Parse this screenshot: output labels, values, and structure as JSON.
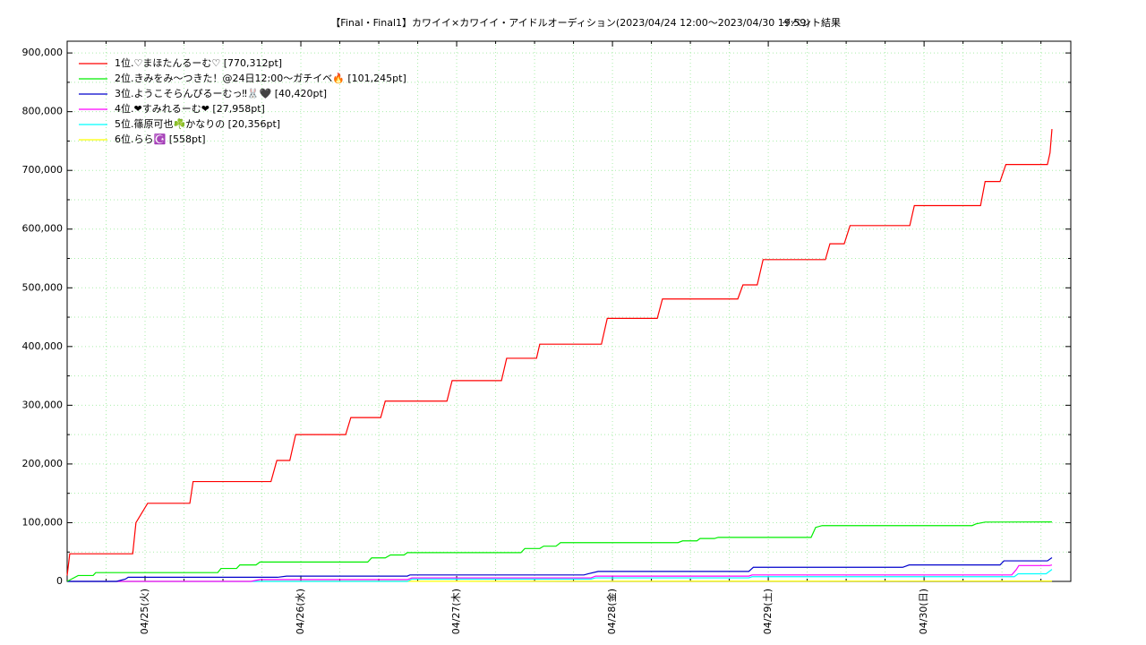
{
  "chart_data": {
    "type": "line",
    "title": "【Final・Final1】カワイイ×カワイイ・アイドルオーディション(2023/04/24 12:00〜2023/04/30 19:59)",
    "subtitle": "イベント結果",
    "xlim": [
      0,
      154.6
    ],
    "xticks": [
      {
        "value": 12,
        "label": "04/25(火)"
      },
      {
        "value": 36,
        "label": "04/26(水)"
      },
      {
        "value": 60,
        "label": "04/27(木)"
      },
      {
        "value": 84,
        "label": "04/28(金)"
      },
      {
        "value": 108,
        "label": "04/29(土)"
      },
      {
        "value": 132,
        "label": "04/30(日)"
      }
    ],
    "xminorticks": [
      0,
      6,
      18,
      24,
      30,
      42,
      48,
      54,
      66,
      72,
      78,
      90,
      96,
      102,
      114,
      120,
      126,
      138,
      144,
      150
    ],
    "ylim": [
      0,
      920000
    ],
    "yticks": [
      0,
      {
        "value": 100000,
        "label": "100,000"
      },
      {
        "value": 200000,
        "label": "200,000"
      },
      {
        "value": 300000,
        "label": "300,000"
      },
      {
        "value": 400000,
        "label": "400,000"
      },
      {
        "value": 500000,
        "label": "500,000"
      },
      {
        "value": 600000,
        "label": "600,000"
      },
      {
        "value": 700000,
        "label": "700,000"
      },
      {
        "value": 800000,
        "label": "800,000"
      },
      {
        "value": 900000,
        "label": "900,000"
      }
    ],
    "yminorticks": [
      50000,
      150000,
      250000,
      350000,
      450000,
      550000,
      650000,
      750000,
      850000
    ],
    "grid": true,
    "legend": "top-left",
    "series": [
      {
        "name": "1位.♡まほたんるーむ♡ [770,312pt]",
        "color": "#ff0000",
        "x": [
          0,
          0.4,
          10.1,
          10.6,
          12.4,
          18.9,
          19.4,
          31.4,
          32.3,
          34.3,
          35.2,
          42.9,
          43.7,
          48.3,
          49.0,
          58.5,
          59.3,
          66.9,
          67.7,
          72.3,
          72.8,
          82.3,
          83.2,
          90.9,
          91.7,
          103.3,
          104.1,
          106.3,
          107.2,
          116.8,
          117.5,
          119.7,
          120.6,
          129.8,
          130.5,
          140.7,
          141.4,
          143.7,
          144.6,
          151.0,
          151.4,
          151.7
        ],
        "values": [
          10000,
          47000,
          47000,
          100000,
          133000,
          133000,
          170000,
          170000,
          206000,
          206000,
          250000,
          250000,
          279000,
          279000,
          307000,
          307000,
          342000,
          342000,
          380000,
          380000,
          404000,
          404000,
          448000,
          448000,
          481000,
          481000,
          505000,
          505000,
          548000,
          548000,
          575000,
          575000,
          606000,
          606000,
          640000,
          640000,
          681000,
          681000,
          710000,
          710000,
          730000,
          770312
        ]
      },
      {
        "name": "2位.きみをみ〜つきた！@24日12:00〜ガチイベ🔥 [101,245pt]",
        "color": "#00ee00",
        "x": [
          0,
          1.7,
          4.0,
          4.4,
          23.2,
          23.7,
          26.1,
          26.6,
          29.1,
          29.7,
          46.3,
          46.9,
          49.0,
          49.8,
          51.9,
          52.4,
          69.9,
          70.5,
          72.8,
          73.4,
          75.3,
          76.0,
          94.1,
          94.8,
          97.0,
          97.5,
          99.7,
          100.3,
          114.6,
          115.3,
          116.3,
          139.4,
          140.0,
          141.4,
          151.7
        ],
        "values": [
          0,
          10000,
          10000,
          15000,
          15000,
          22000,
          22000,
          28000,
          28000,
          33000,
          33000,
          40000,
          40000,
          45000,
          45000,
          49000,
          49000,
          56000,
          56000,
          60000,
          60000,
          66000,
          66000,
          69000,
          69000,
          73000,
          73000,
          75000,
          75000,
          92000,
          95000,
          95000,
          98000,
          101000,
          101245
        ]
      },
      {
        "name": "3位.ようこそらんぴるーむっ‼︎🐰🖤 [40,420pt]",
        "color": "#0000cc",
        "x": [
          0,
          7.6,
          9.0,
          9.4,
          32.4,
          33.8,
          52.4,
          52.8,
          79.6,
          80.3,
          81.8,
          105.0,
          105.7,
          128.7,
          129.7,
          143.7,
          144.3,
          151.0,
          151.7
        ],
        "values": [
          0,
          0,
          4000,
          7000,
          7000,
          9000,
          9000,
          11000,
          11000,
          13000,
          17000,
          17000,
          24000,
          24000,
          28000,
          28000,
          35000,
          35000,
          40420
        ]
      },
      {
        "name": "4位.❤すみれるーむ❤ [27,958pt]",
        "color": "#ff00ff",
        "x": [
          0,
          28.3,
          29.7,
          52.4,
          53.1,
          80.7,
          81.4,
          105.0,
          105.5,
          145.5,
          146.2,
          146.6,
          151.3,
          151.7
        ],
        "values": [
          0,
          0,
          3000,
          3000,
          6000,
          6000,
          9000,
          9000,
          11000,
          11000,
          20000,
          27000,
          27000,
          27958
        ]
      },
      {
        "name": "5位.篠原可也☘️かなりの [20,356pt]",
        "color": "#00ffff",
        "x": [
          0,
          52.4,
          53.1,
          80.7,
          81.4,
          105.0,
          105.5,
          145.9,
          146.5,
          150.8,
          151.7
        ],
        "values": [
          0,
          0,
          4000,
          4000,
          6000,
          6000,
          8000,
          8000,
          13000,
          13000,
          20356
        ]
      },
      {
        "name": "6位.らら☪️ [558pt]",
        "color": "#ffff00",
        "x": [
          0,
          151.7
        ],
        "values": [
          0,
          558
        ]
      }
    ]
  }
}
